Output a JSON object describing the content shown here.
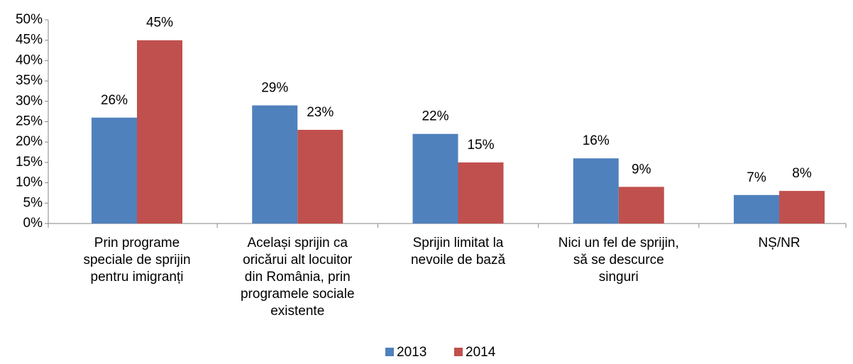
{
  "chart_data": {
    "type": "bar",
    "categories": [
      "Prin programe\nspeciale de sprijin\npentru imigranți",
      "Același sprijin ca\noricărui alt locuitor\ndin România, prin\nprogramele sociale\nexistente",
      "Sprijin limitat la\nnevoile de bază",
      "Nici un fel de sprijin,\nsă se descurce\nsinguri",
      "NȘ/NR"
    ],
    "series": [
      {
        "name": "2013",
        "color": "#4f81bd",
        "values": [
          26,
          29,
          22,
          16,
          7
        ],
        "value_labels": [
          "26%",
          "29%",
          "22%",
          "16%",
          "7%"
        ]
      },
      {
        "name": "2014",
        "color": "#c0504d",
        "values": [
          45,
          23,
          15,
          9,
          8
        ],
        "value_labels": [
          "45%",
          "23%",
          "15%",
          "9%",
          "8%"
        ]
      }
    ],
    "ylim": [
      0,
      50
    ],
    "yticks": [
      {
        "value": 0,
        "label": "0%"
      },
      {
        "value": 5,
        "label": "5%"
      },
      {
        "value": 10,
        "label": "10%"
      },
      {
        "value": 15,
        "label": "15%"
      },
      {
        "value": 20,
        "label": "20%"
      },
      {
        "value": 25,
        "label": "25%"
      },
      {
        "value": 30,
        "label": "30%"
      },
      {
        "value": 35,
        "label": "35%"
      },
      {
        "value": 40,
        "label": "40%"
      },
      {
        "value": 45,
        "label": "45%"
      },
      {
        "value": 50,
        "label": "50%"
      }
    ],
    "grid": false,
    "legend": "bottom"
  }
}
